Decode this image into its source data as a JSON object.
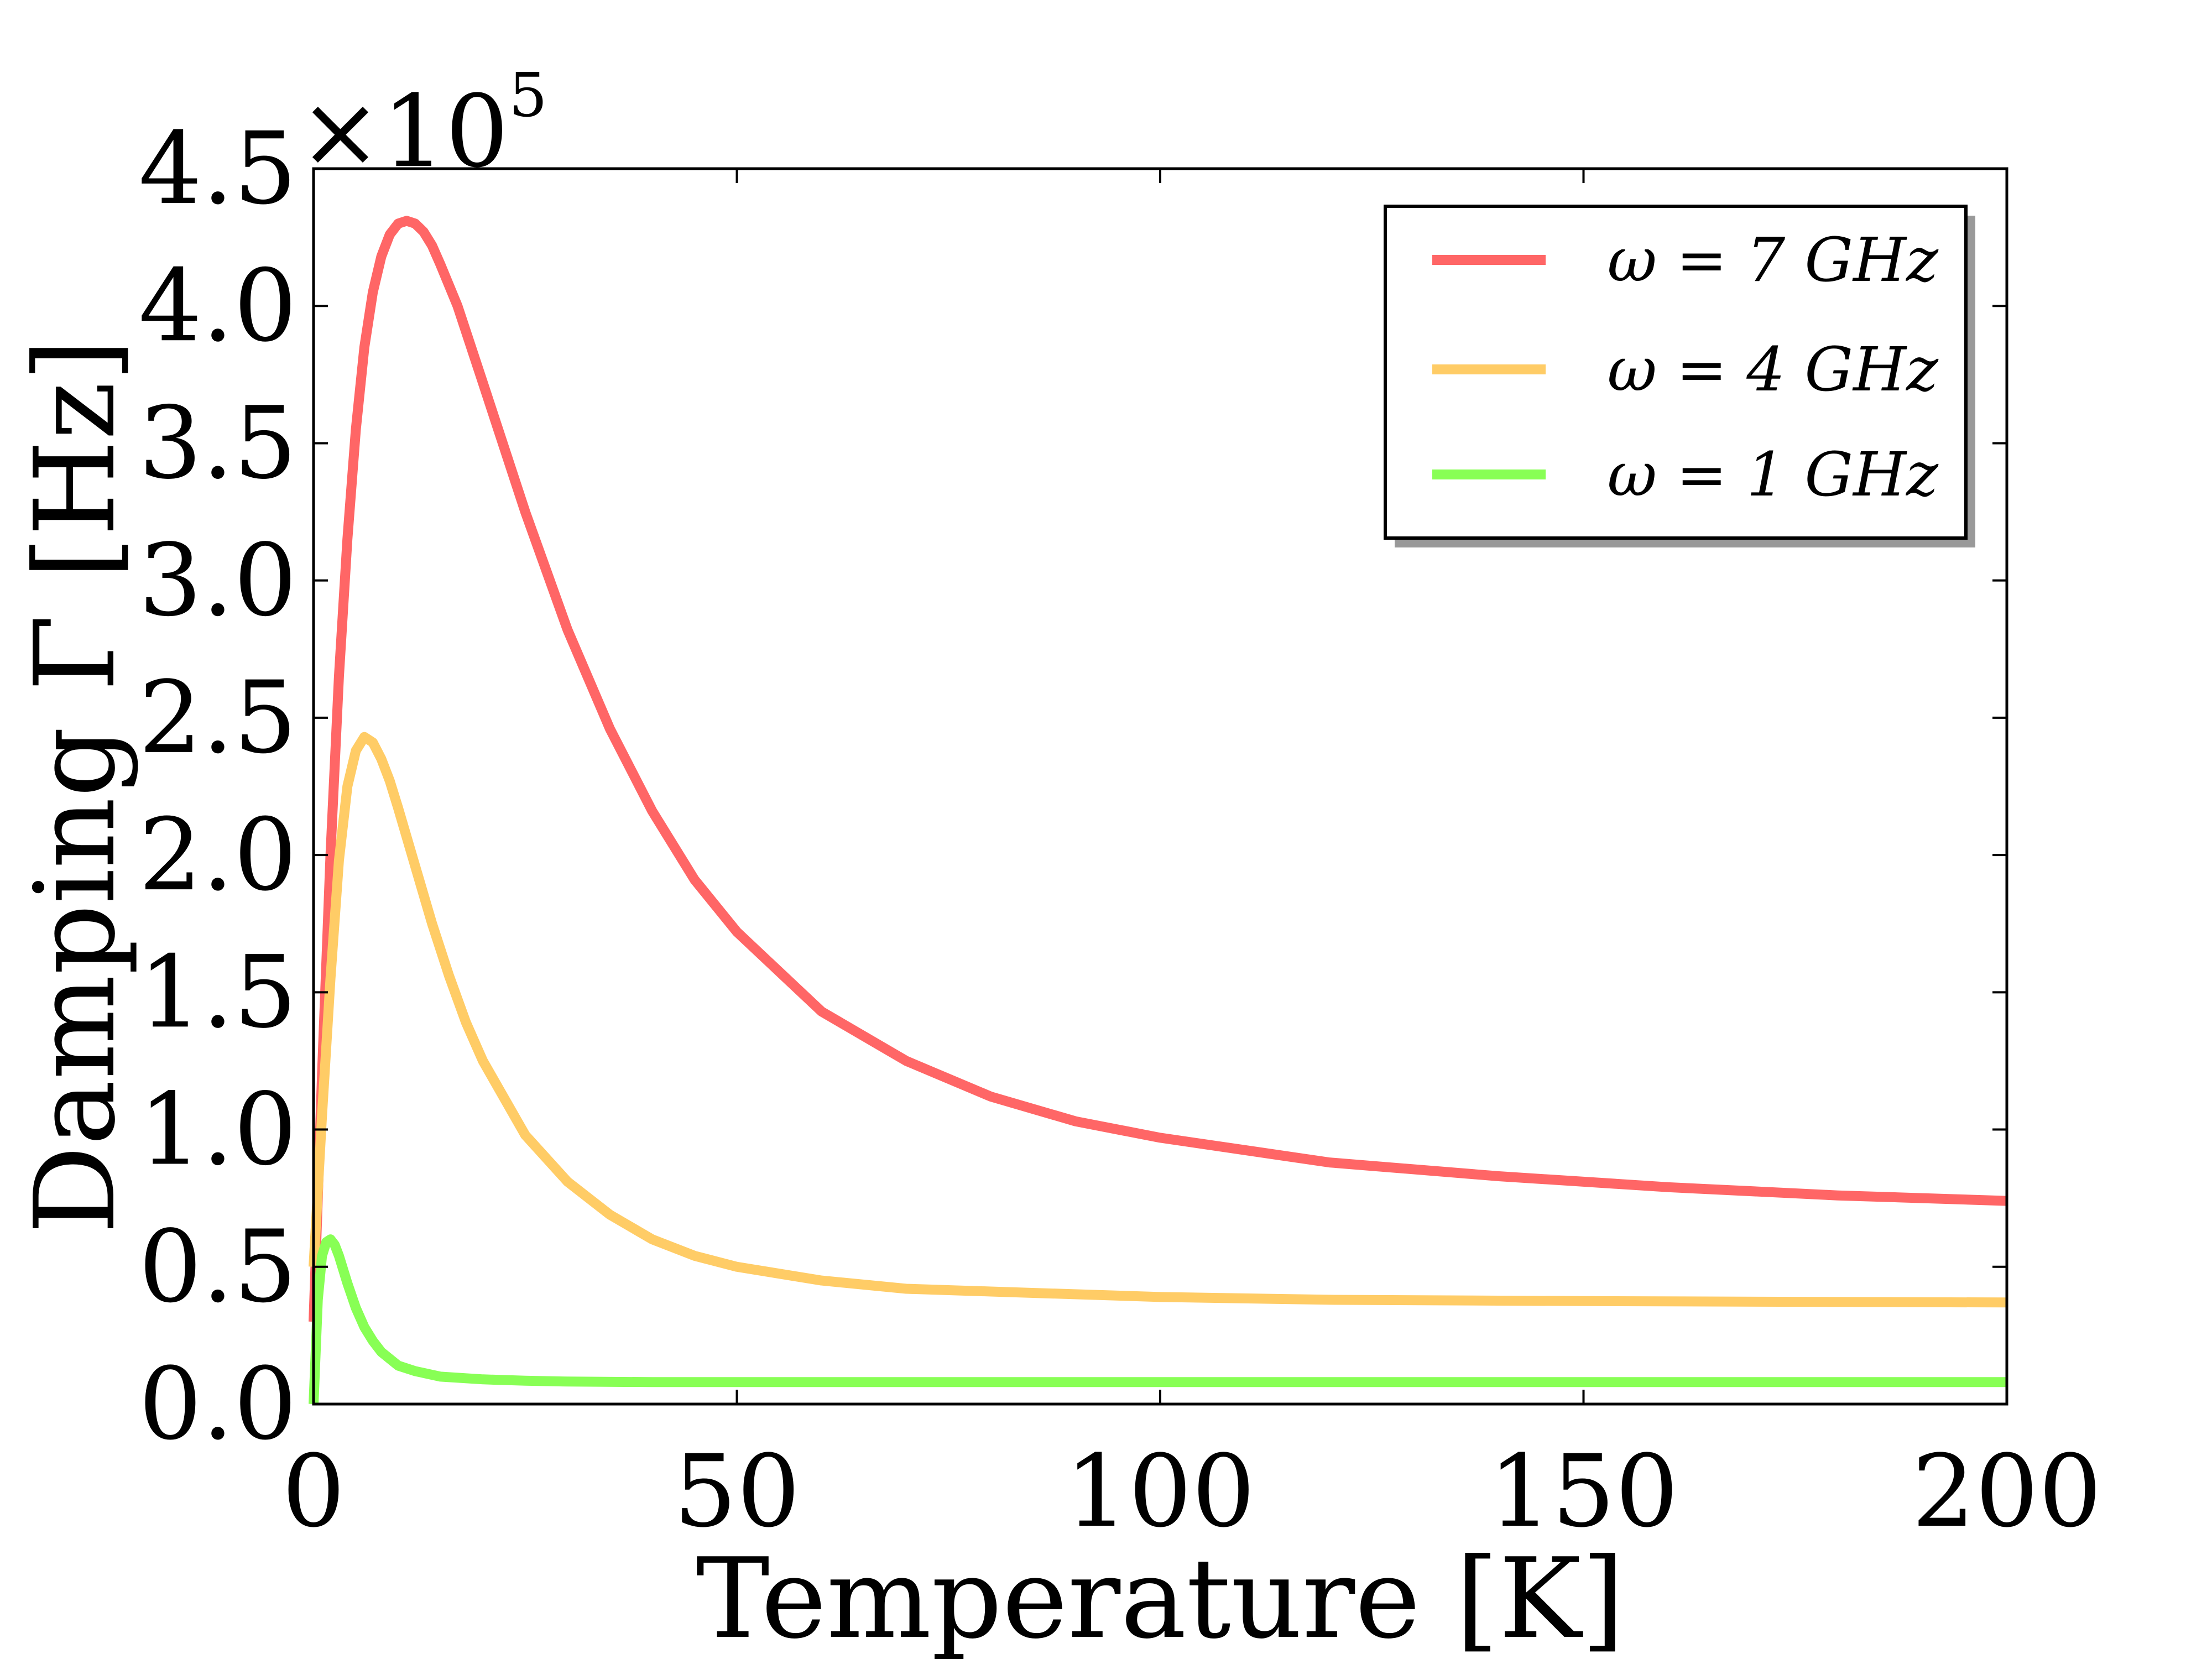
{
  "chart_data": {
    "type": "line",
    "title": "",
    "xlabel": "Temperature [K]",
    "ylabel": "Damping Γ [Hz]",
    "xlim": [
      0,
      200
    ],
    "ylim": [
      0,
      4.5
    ],
    "x_ticks": [
      0,
      50,
      100,
      150,
      200
    ],
    "y_ticks": [
      0.0,
      0.5,
      1.0,
      1.5,
      2.0,
      2.5,
      3.0,
      3.5,
      4.0,
      4.5
    ],
    "x_tick_labels": [
      "0",
      "50",
      "100",
      "150",
      "200"
    ],
    "y_tick_labels": [
      "0.0",
      "0.5",
      "1.0",
      "1.5",
      "2.0",
      "2.5",
      "3.0",
      "3.5",
      "4.0",
      "4.5"
    ],
    "y_multiplier": {
      "base": "×10",
      "exponent": "5"
    },
    "grid": false,
    "legend_position": "top-right",
    "series": [
      {
        "name": "ω = 7 GHz",
        "color": "#ff6666",
        "x": [
          0,
          1,
          2,
          3,
          4,
          5,
          6,
          7,
          8,
          9,
          10,
          11,
          12,
          13,
          14,
          15,
          17,
          20,
          25,
          30,
          35,
          40,
          45,
          50,
          60,
          70,
          80,
          90,
          100,
          120,
          140,
          160,
          180,
          200
        ],
        "values": [
          0.3,
          1.2,
          2.0,
          2.65,
          3.15,
          3.55,
          3.85,
          4.05,
          4.18,
          4.26,
          4.3,
          4.31,
          4.3,
          4.27,
          4.22,
          4.15,
          4.0,
          3.72,
          3.25,
          2.82,
          2.46,
          2.16,
          1.91,
          1.72,
          1.43,
          1.25,
          1.12,
          1.03,
          0.97,
          0.88,
          0.83,
          0.79,
          0.76,
          0.74
        ]
      },
      {
        "name": "ω = 4 GHz",
        "color": "#ffcc66",
        "x": [
          0,
          1,
          2,
          3,
          4,
          5,
          6,
          7,
          8,
          9,
          10,
          12,
          14,
          16,
          18,
          20,
          25,
          30,
          35,
          40,
          45,
          50,
          60,
          70,
          80,
          100,
          120,
          150,
          200
        ],
        "values": [
          0.5,
          1.05,
          1.55,
          1.98,
          2.25,
          2.38,
          2.43,
          2.41,
          2.35,
          2.27,
          2.17,
          1.96,
          1.75,
          1.56,
          1.39,
          1.25,
          0.98,
          0.81,
          0.69,
          0.6,
          0.54,
          0.5,
          0.45,
          0.42,
          0.41,
          0.39,
          0.38,
          0.375,
          0.37
        ]
      },
      {
        "name": "ω = 1 GHz",
        "color": "#88ff55",
        "x": [
          0,
          0.5,
          1,
          1.5,
          2,
          2.5,
          3,
          4,
          5,
          6,
          7,
          8,
          10,
          12,
          15,
          20,
          25,
          30,
          40,
          50,
          75,
          100,
          150,
          200
        ],
        "values": [
          0.0,
          0.38,
          0.54,
          0.59,
          0.6,
          0.58,
          0.54,
          0.44,
          0.35,
          0.28,
          0.23,
          0.19,
          0.14,
          0.12,
          0.1,
          0.09,
          0.085,
          0.082,
          0.08,
          0.08,
          0.08,
          0.08,
          0.08,
          0.08
        ]
      }
    ]
  }
}
